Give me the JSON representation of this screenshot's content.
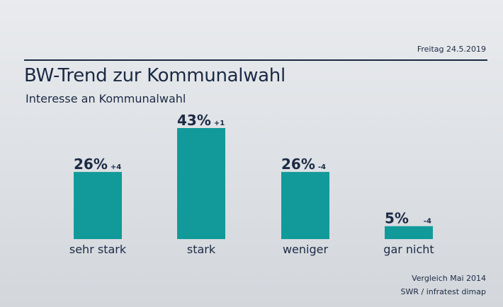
{
  "header": {
    "date": "Freitag 24.5.2019",
    "title": "BW-Trend zur Kommunalwahl",
    "subtitle": "Interesse an Kommunalwahl"
  },
  "footer": {
    "comparison": "Vergleich Mai 2014",
    "source": "SWR / infratest dimap"
  },
  "colors": {
    "bar": "#129a9a",
    "text": "#1b2a44"
  },
  "chart_data": {
    "type": "bar",
    "title": "BW-Trend zur Kommunalwahl",
    "subtitle": "Interesse an Kommunalwahl",
    "categories": [
      "sehr stark",
      "stark",
      "weniger",
      "gar nicht"
    ],
    "values": [
      26,
      43,
      26,
      5
    ],
    "value_labels": [
      "26%",
      "43%",
      "26%",
      "5%"
    ],
    "changes": [
      "+4",
      "+1",
      "-4",
      "-4"
    ],
    "unit": "%",
    "ylim": [
      0,
      43
    ],
    "grid": false
  }
}
